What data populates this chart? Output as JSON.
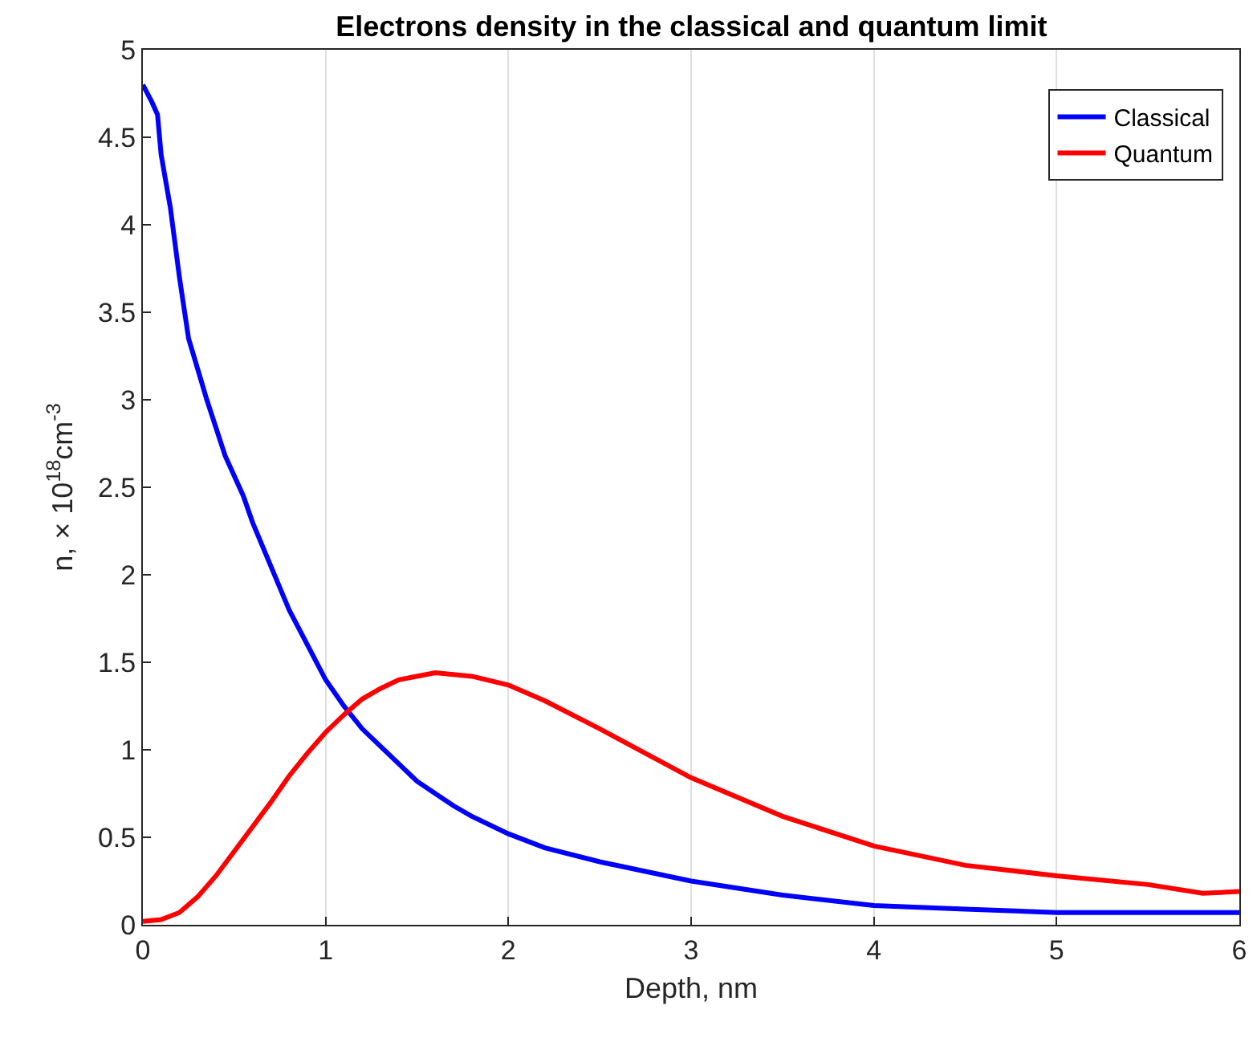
{
  "chart_data": {
    "type": "line",
    "title": "Electrons density in the classical and quantum limit",
    "xlabel": "Depth, nm",
    "ylabel": "n, × 10$^{18}$cm$^{-3}$",
    "xlim": [
      0,
      6
    ],
    "xticks": [
      0,
      1,
      2,
      3,
      4,
      5,
      6
    ],
    "ylim": [
      0,
      5
    ],
    "yticks": [
      0,
      0.5,
      1,
      1.5,
      2,
      2.5,
      3,
      3.5,
      4,
      4.5,
      5
    ],
    "grid": "x",
    "legend": "top right",
    "marker": "none",
    "line_style": "solid",
    "series": [
      {
        "name": "Classical",
        "color": "#0000ff",
        "x": [
          0,
          0.05,
          0.08,
          0.1,
          0.15,
          0.2,
          0.25,
          0.35,
          0.45,
          0.55,
          0.6,
          0.7,
          0.8,
          0.9,
          1.0,
          1.1,
          1.2,
          1.3,
          1.4,
          1.5,
          1.6,
          1.7,
          1.8,
          2.0,
          2.2,
          2.5,
          3.0,
          3.5,
          4.0,
          4.5,
          5.0,
          6.0
        ],
        "values": [
          4.8,
          4.7,
          4.63,
          4.4,
          4.1,
          3.7,
          3.35,
          3.0,
          2.68,
          2.45,
          2.3,
          2.05,
          1.8,
          1.6,
          1.4,
          1.25,
          1.12,
          1.02,
          0.92,
          0.82,
          0.75,
          0.68,
          0.62,
          0.52,
          0.44,
          0.36,
          0.25,
          0.17,
          0.11,
          0.09,
          0.07,
          0.07
        ]
      },
      {
        "name": "Quantum",
        "color": "#ff0000",
        "x": [
          0,
          0.1,
          0.2,
          0.3,
          0.4,
          0.5,
          0.6,
          0.7,
          0.8,
          0.9,
          1.0,
          1.1,
          1.2,
          1.3,
          1.4,
          1.6,
          1.8,
          2.0,
          2.2,
          2.5,
          3.0,
          3.5,
          4.0,
          4.5,
          5.0,
          5.5,
          5.8,
          6.0
        ],
        "values": [
          0.02,
          0.03,
          0.07,
          0.16,
          0.28,
          0.42,
          0.56,
          0.7,
          0.85,
          0.98,
          1.1,
          1.2,
          1.29,
          1.35,
          1.4,
          1.44,
          1.42,
          1.37,
          1.28,
          1.12,
          0.84,
          0.62,
          0.45,
          0.34,
          0.28,
          0.23,
          0.18,
          0.19
        ]
      }
    ]
  }
}
